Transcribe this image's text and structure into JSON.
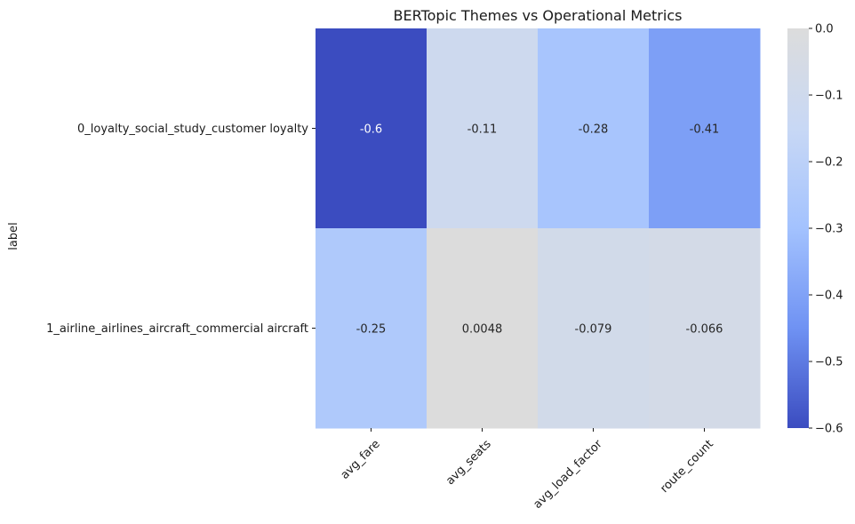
{
  "chart_data": {
    "type": "heatmap",
    "title": "BERTopic Themes vs Operational Metrics",
    "ylabel": "label",
    "xlabel": "",
    "rows": [
      "0_loyalty_social_study_customer loyalty",
      "1_airline_airlines_aircraft_commercial aircraft"
    ],
    "columns": [
      "avg_fare",
      "avg_seats",
      "avg_load_factor",
      "route_count"
    ],
    "values": [
      [
        -0.6,
        -0.11,
        -0.28,
        -0.41
      ],
      [
        -0.25,
        0.0048,
        -0.079,
        -0.066
      ]
    ],
    "annotations": [
      [
        "-0.6",
        "-0.11",
        "-0.28",
        "-0.41"
      ],
      [
        "-0.25",
        "0.0048",
        "-0.079",
        "-0.066"
      ]
    ],
    "colorbar": {
      "range": [
        -0.6,
        0.0
      ],
      "ticks": [
        0.0,
        -0.1,
        -0.2,
        -0.3,
        -0.4,
        -0.5,
        -0.6
      ],
      "tick_labels": [
        "0.0",
        "−0.1",
        "−0.2",
        "−0.3",
        "−0.4",
        "−0.5",
        "−0.6"
      ],
      "colormap": "coolwarm (lower half)",
      "colors": [
        "#3b4cc0",
        "#6f92f3",
        "#a3c2fe",
        "#c8d8f5",
        "#dcdcdc"
      ]
    }
  }
}
